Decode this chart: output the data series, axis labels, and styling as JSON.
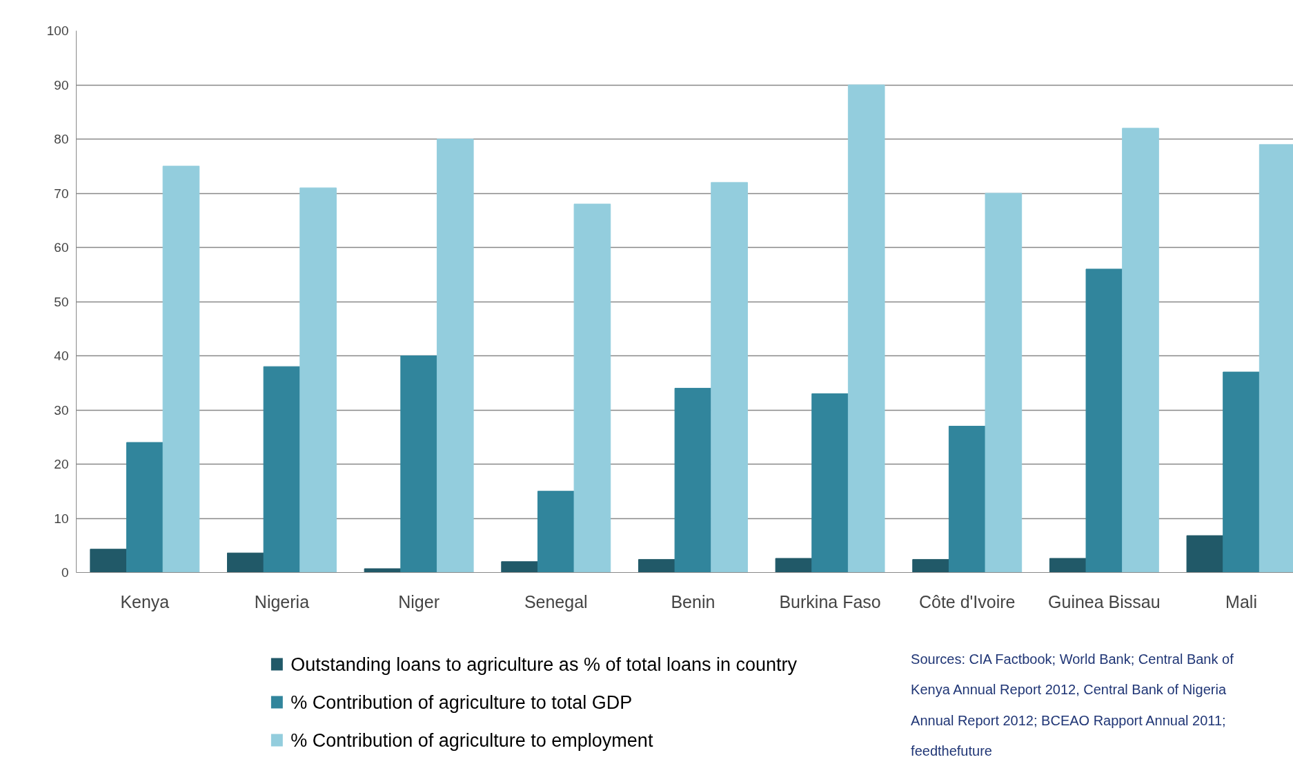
{
  "chart_data": {
    "type": "bar",
    "categories": [
      "Kenya",
      "Nigeria",
      "Niger",
      "Senegal",
      "Benin",
      "Burkina Faso",
      "Côte d'Ivoire",
      "Guinea Bissau",
      "Mali"
    ],
    "series": [
      {
        "name": "Outstanding loans to agriculture as % of total loans in country",
        "color": "#215968",
        "values": [
          4.3,
          3.6,
          0.7,
          2.0,
          2.4,
          2.6,
          2.4,
          2.6,
          6.8
        ]
      },
      {
        "name": "% Contribution of agriculture to total GDP",
        "color": "#31859c",
        "values": [
          24,
          38,
          40,
          15,
          34,
          33,
          27,
          56,
          37
        ]
      },
      {
        "name": "% Contribution of agriculture to employment",
        "color": "#93cddd",
        "values": [
          75,
          71,
          80,
          68,
          72,
          90,
          70,
          82,
          79
        ]
      }
    ],
    "ylim": [
      0,
      100
    ],
    "yticks": [
      0,
      10,
      20,
      30,
      40,
      50,
      60,
      70,
      80,
      90,
      100
    ],
    "grid": "y",
    "legend": "bottom",
    "annotations": [
      "Sources: CIA Factbook; World Bank; Central Bank of Kenya Annual Report 2012, Central Bank of Nigeria Annual Report 2012; BCEAO Rapport Annual  2011; feedthefuture"
    ]
  }
}
